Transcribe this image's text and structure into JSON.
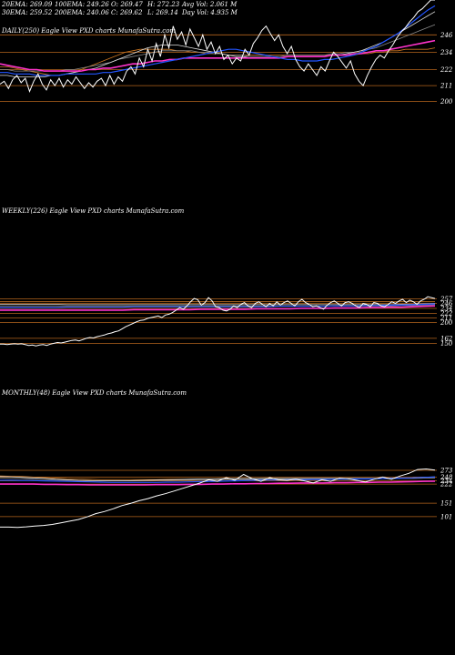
{
  "header": {
    "stats": [
      [
        "20EMA: 269.09",
        "100EMA: 249.26",
        "O: 269.47",
        "H: 272.23",
        "Avg Vol: 2.061 M"
      ],
      [
        "30EMA: 259.52",
        "200EMA: 240.06",
        "C: 269.62",
        "L: 269.14",
        "Day Vol: 4.935 M"
      ]
    ]
  },
  "colors": {
    "background": "#000000",
    "price": "#ffffff",
    "level_line": "#b5651d",
    "ema_blue": "#2255ff",
    "ema_magenta": "#ff33cc",
    "ema_white": "#dddddd",
    "ema_gray": "#888888",
    "ema_orange": "#cc7722"
  },
  "chart_data": [
    {
      "type": "line",
      "label": "DAILY(250) Eagle View PXD charts MunafaSutra.com",
      "y_ticks": [
        "246",
        "234",
        "222",
        "211",
        "200"
      ],
      "price": [
        212,
        214,
        209,
        215,
        218,
        213,
        216,
        207,
        214,
        219,
        212,
        208,
        215,
        211,
        216,
        210,
        215,
        212,
        217,
        213,
        209,
        213,
        210,
        214,
        216,
        211,
        218,
        212,
        217,
        214,
        221,
        224,
        219,
        230,
        224,
        236,
        228,
        240,
        231,
        246,
        237,
        252,
        243,
        248,
        239,
        250,
        244,
        238,
        246,
        236,
        241,
        233,
        238,
        229,
        232,
        226,
        230,
        228,
        236,
        232,
        240,
        244,
        249,
        252,
        247,
        242,
        246,
        238,
        233,
        238,
        229,
        224,
        221,
        226,
        222,
        218,
        224,
        221,
        228,
        234,
        231,
        227,
        223,
        228,
        219,
        214,
        211,
        218,
        224,
        229,
        232,
        230,
        235,
        239,
        244,
        248,
        251,
        255,
        258,
        262,
        264,
        267,
        270,
        272
      ],
      "ema_blue": [
        220,
        220,
        219,
        219,
        219,
        218,
        218,
        218,
        218,
        219,
        219,
        219,
        219,
        219,
        220,
        220,
        221,
        222,
        223,
        224,
        225,
        226,
        227,
        228,
        229,
        230,
        231,
        232,
        233,
        234,
        235,
        236,
        236,
        235,
        234,
        233,
        232,
        231,
        230,
        229,
        229,
        228,
        228,
        228,
        229,
        229,
        230,
        231,
        232,
        234,
        236,
        238,
        241,
        244,
        247,
        251,
        255,
        259,
        263,
        266
      ],
      "ema_magenta": [
        226,
        225,
        224,
        223,
        222,
        222,
        221,
        221,
        221,
        221,
        221,
        221,
        222,
        222,
        223,
        223,
        224,
        225,
        226,
        226,
        227,
        228,
        228,
        229,
        229,
        230,
        230,
        230,
        230,
        230,
        230,
        230,
        230,
        230,
        230,
        230,
        230,
        230,
        230,
        231,
        231,
        231,
        231,
        231,
        231,
        232,
        232,
        232,
        233,
        233,
        234,
        235,
        235,
        236,
        237,
        238,
        239,
        240,
        241,
        242
      ],
      "ema_white": [
        218,
        218,
        217,
        217,
        217,
        217,
        217,
        218,
        218,
        219,
        220,
        221,
        222,
        223,
        225,
        227,
        229,
        231,
        233,
        235,
        237,
        238,
        239,
        239,
        239,
        238,
        237,
        236,
        235,
        234,
        233,
        232,
        231,
        231,
        230,
        230,
        230,
        230,
        230,
        231,
        231,
        231,
        231,
        231,
        231,
        232,
        232,
        233,
        234,
        235,
        237,
        239,
        241,
        244,
        247,
        250,
        253,
        256,
        259,
        262
      ],
      "ema_gray": [
        222,
        222,
        221,
        221,
        221,
        221,
        221,
        221,
        221,
        222,
        222,
        223,
        224,
        225,
        226,
        227,
        229,
        230,
        231,
        232,
        233,
        234,
        235,
        235,
        235,
        235,
        235,
        234,
        234,
        233,
        233,
        232,
        232,
        232,
        231,
        231,
        231,
        231,
        231,
        232,
        232,
        232,
        232,
        232,
        232,
        233,
        233,
        234,
        234,
        235,
        236,
        237,
        239,
        241,
        243,
        245,
        247,
        249,
        251,
        253
      ],
      "ema_orange": [
        224,
        224,
        223,
        222,
        221,
        220,
        219,
        218,
        218,
        219,
        220,
        222,
        224,
        226,
        228,
        230,
        232,
        234,
        235,
        236,
        236,
        236,
        236,
        236,
        235,
        235,
        234,
        234,
        233,
        233,
        233,
        232,
        232,
        232,
        232,
        232,
        232,
        232,
        232,
        232,
        232,
        232,
        232,
        232,
        232,
        232,
        232,
        232,
        232,
        233,
        233,
        234,
        234,
        235,
        235,
        236,
        236,
        236,
        236,
        237
      ]
    },
    {
      "type": "line",
      "label": "WEEKLY(226) Eagle View PXD charts MunafaSutra.com",
      "y_ticks": [
        "257",
        "246",
        "234",
        "222",
        "211",
        "200",
        "162",
        "150"
      ],
      "price": [
        148,
        148,
        147,
        148,
        149,
        148,
        149,
        147,
        145,
        146,
        144,
        146,
        147,
        145,
        148,
        150,
        152,
        151,
        153,
        155,
        157,
        158,
        156,
        159,
        162,
        164,
        163,
        166,
        168,
        170,
        173,
        175,
        178,
        180,
        185,
        190,
        194,
        198,
        202,
        205,
        206,
        210,
        212,
        214,
        216,
        212,
        218,
        220,
        224,
        230,
        236,
        232,
        240,
        250,
        258,
        255,
        242,
        248,
        260,
        252,
        238,
        236,
        230,
        228,
        232,
        240,
        236,
        244,
        248,
        240,
        236,
        246,
        250,
        244,
        238,
        246,
        240,
        250,
        242,
        248,
        252,
        246,
        240,
        250,
        256,
        248,
        244,
        238,
        240,
        236,
        232,
        242,
        248,
        252,
        246,
        240,
        248,
        250,
        246,
        240,
        236,
        246,
        244,
        238,
        248,
        246,
        240,
        238,
        244,
        250,
        246,
        252,
        256,
        248,
        254,
        250,
        244,
        252,
        256,
        262,
        260,
        258
      ],
      "ema_blue": [
        236,
        236,
        236,
        236,
        236,
        236,
        237,
        237,
        237,
        237,
        237,
        237,
        238,
        238,
        238,
        238,
        238,
        238,
        238,
        238,
        238,
        238,
        238,
        238,
        238,
        239,
        239,
        239,
        239,
        239,
        240,
        240,
        240,
        241,
        241,
        242,
        242,
        243,
        244,
        245
      ],
      "ema_magenta": [
        230,
        230,
        230,
        230,
        230,
        230,
        230,
        230,
        230,
        230,
        230,
        230,
        231,
        231,
        231,
        231,
        231,
        231,
        232,
        232,
        232,
        232,
        232,
        233,
        233,
        233,
        233,
        234,
        234,
        234,
        235,
        235,
        235,
        236,
        236,
        237,
        237,
        238,
        239,
        240
      ],
      "ema_white": [
        244,
        244,
        244,
        244,
        244,
        244,
        243,
        243,
        243,
        243,
        243,
        243,
        243,
        243,
        243,
        243,
        243,
        243,
        243,
        243,
        243,
        243,
        243,
        243,
        243,
        243,
        243,
        243,
        243,
        243,
        243,
        243,
        243,
        243,
        243,
        243,
        244,
        244,
        245,
        246
      ],
      "ema_gray": [
        240,
        240,
        240,
        240,
        240,
        240,
        240,
        240,
        240,
        240,
        240,
        240,
        240,
        240,
        240,
        240,
        240,
        240,
        240,
        240,
        240,
        240,
        240,
        240,
        240,
        240,
        240,
        240,
        240,
        240,
        240,
        240,
        240,
        240,
        240,
        240,
        241,
        241,
        242,
        243
      ],
      "ema_orange": [
        250,
        250,
        250,
        250,
        250,
        250,
        250,
        250,
        250,
        250,
        250,
        250,
        250,
        250,
        250,
        250,
        250,
        250,
        250,
        250,
        250,
        250,
        250,
        250,
        250,
        250,
        250,
        250,
        250,
        250,
        250,
        250,
        250,
        250,
        250,
        250,
        250,
        250,
        250,
        250
      ]
    },
    {
      "type": "line",
      "label": "MONTHLY(48) Eagle View PXD charts MunafaSutra.com",
      "y_ticks": [
        "273",
        "248",
        "234",
        "222",
        "151",
        "101"
      ],
      "price": [
        62,
        62,
        61,
        63,
        66,
        68,
        72,
        78,
        84,
        90,
        100,
        112,
        120,
        130,
        142,
        150,
        160,
        168,
        178,
        186,
        196,
        206,
        216,
        226,
        238,
        232,
        246,
        236,
        258,
        242,
        232,
        246,
        238,
        236,
        240,
        234,
        226,
        238,
        232,
        244,
        242,
        236,
        230,
        240,
        248,
        240,
        252,
        262,
        276,
        278,
        274
      ],
      "ema_blue": [
        236,
        236,
        235,
        235,
        234,
        233,
        232,
        231,
        230,
        229,
        228,
        228,
        228,
        228,
        228,
        229,
        229,
        230,
        231,
        232,
        233,
        234,
        235,
        236,
        237,
        237,
        238,
        238,
        239,
        239,
        240,
        240,
        241,
        241,
        242,
        243,
        244,
        245,
        247,
        248
      ],
      "ema_magenta": [
        222,
        222,
        222,
        222,
        221,
        221,
        220,
        220,
        219,
        219,
        219,
        219,
        219,
        219,
        220,
        220,
        220,
        221,
        221,
        222,
        222,
        223,
        223,
        224,
        224,
        225,
        225,
        226,
        226,
        226,
        227,
        227,
        228,
        228,
        229,
        229,
        230,
        231,
        232,
        233
      ],
      "ema_white": [
        250,
        249,
        247,
        245,
        243,
        240,
        238,
        236,
        235,
        234,
        234,
        234,
        235,
        236,
        237,
        238,
        239,
        240,
        241,
        241,
        242,
        242,
        242,
        242,
        243,
        243,
        243,
        243,
        243,
        243,
        243,
        243,
        243,
        243,
        243,
        244,
        244,
        245,
        247,
        249
      ],
      "ema_gray": [
        244,
        243,
        242,
        240,
        239,
        238,
        237,
        236,
        235,
        235,
        235,
        235,
        235,
        235,
        236,
        236,
        237,
        237,
        238,
        238,
        239,
        239,
        239,
        240,
        240,
        240,
        240,
        241,
        241,
        241,
        241,
        241,
        241,
        241,
        242,
        242,
        243,
        243,
        244,
        245
      ],
      "ema_orange": [
        252,
        251,
        250,
        248,
        246,
        244,
        242,
        241,
        240,
        239,
        239,
        239,
        239,
        239,
        239,
        240,
        240,
        240,
        240,
        240,
        240,
        241,
        241,
        241,
        241,
        241,
        241,
        241,
        241,
        241,
        241,
        242,
        242,
        242,
        242,
        242,
        243,
        243,
        244,
        245
      ]
    }
  ]
}
